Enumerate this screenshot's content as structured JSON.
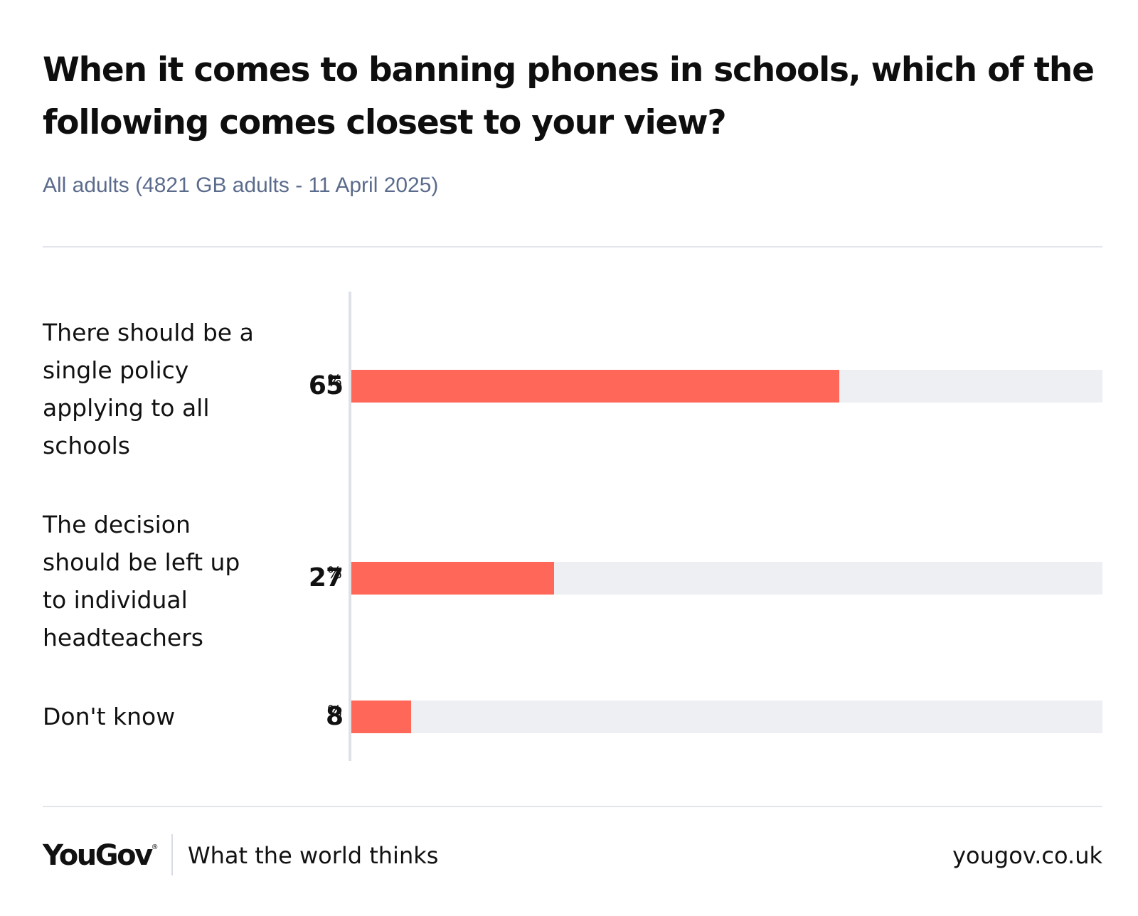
{
  "chart_data": {
    "type": "bar",
    "orientation": "horizontal",
    "title": "When it comes to banning phones in schools, which of the following comes closest to your view?",
    "subtitle": "All adults (4821 GB adults - 11 April 2025)",
    "unit": "%",
    "xlim": [
      0,
      100
    ],
    "bar_color": "#ff6759",
    "track_color": "#eeeff3",
    "categories": [
      "There should be a single policy applying to all schools",
      "The decision should be left up to individual headteachers",
      "Don't know"
    ],
    "values": [
      65,
      27,
      8
    ]
  },
  "footer": {
    "brand": "YouGov",
    "registered_mark": "®",
    "tagline": "What the world thinks",
    "url": "yougov.co.uk"
  }
}
